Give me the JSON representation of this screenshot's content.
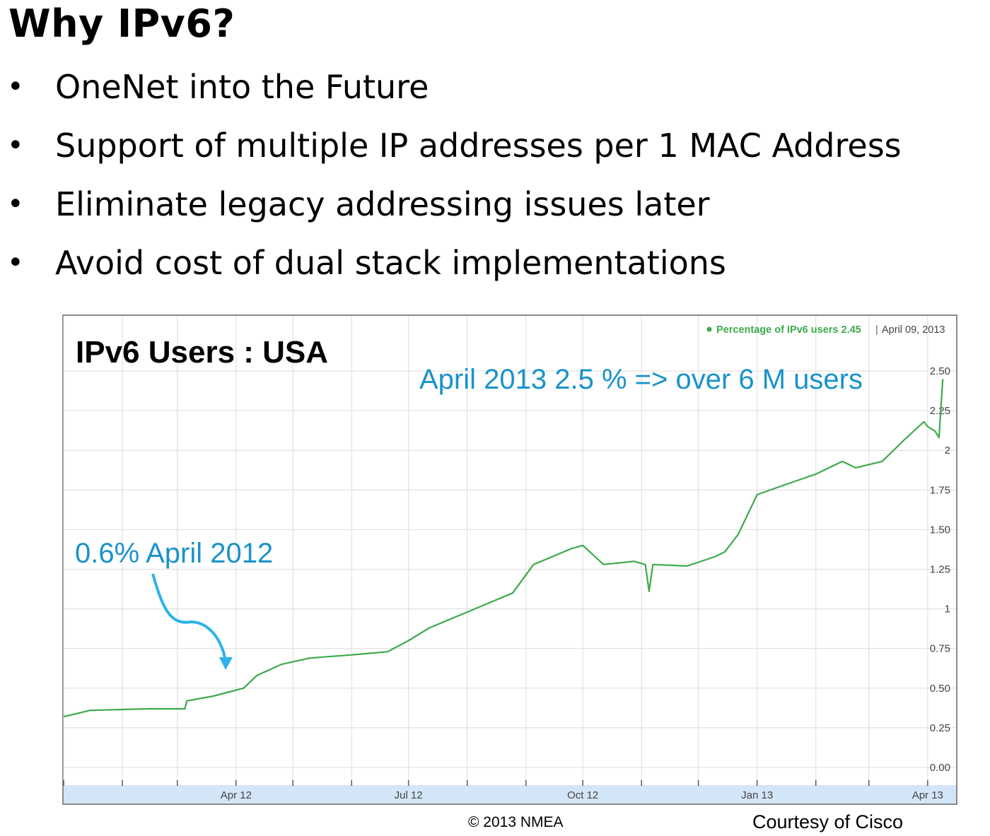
{
  "slide": {
    "title": "Why IPv6?",
    "bullet_symbol": "•",
    "bullets": [
      "OneNet into the Future",
      "Support of multiple IP addresses per 1 MAC Address",
      "Eliminate legacy addressing issues later",
      "Avoid cost of dual stack implementations"
    ],
    "footer_left": "© 2013 NMEA",
    "footer_right": "Courtesy of Cisco"
  },
  "colors": {
    "line": "#3daa4c",
    "annotation": "#1a93c9",
    "arrow": "#2bb3e8",
    "axis_band": "#d3e6f7",
    "grid": "#dcdcdc"
  },
  "chart_data": {
    "type": "line",
    "title": "IPv6 Users : USA",
    "legend_label": "Percentage of IPv6 users 2.45",
    "legend_date": "April 09, 2013",
    "legend_position": "top-right",
    "xlabel": "",
    "ylabel": "",
    "ylim": [
      0,
      2.5
    ],
    "xlim": [
      "2012-01-01",
      "2013-04-16"
    ],
    "y_ticks": [
      "0.00",
      "0.25",
      "0.50",
      "0.75",
      "1",
      "1.25",
      "1.50",
      "1.75",
      "2",
      "2.25",
      "2.50"
    ],
    "x_ticks": [
      {
        "date": "2012-04-01",
        "label": "Apr 12"
      },
      {
        "date": "2012-07-01",
        "label": "Jul 12"
      },
      {
        "date": "2012-10-01",
        "label": "Oct 12"
      },
      {
        "date": "2013-01-01",
        "label": "Jan 13"
      },
      {
        "date": "2013-04-01",
        "label": "Apr 13"
      }
    ],
    "grid": true,
    "series": [
      {
        "points": [
          [
            "2012-01-01",
            0.32
          ],
          [
            "2012-01-15",
            0.36
          ],
          [
            "2012-02-15",
            0.37
          ],
          [
            "2012-03-05",
            0.37
          ],
          [
            "2012-03-06",
            0.42
          ],
          [
            "2012-03-20",
            0.45
          ],
          [
            "2012-04-05",
            0.5
          ],
          [
            "2012-04-12",
            0.58
          ],
          [
            "2012-04-25",
            0.65
          ],
          [
            "2012-05-10",
            0.69
          ],
          [
            "2012-06-01",
            0.71
          ],
          [
            "2012-06-20",
            0.73
          ],
          [
            "2012-07-01",
            0.8
          ],
          [
            "2012-07-12",
            0.88
          ],
          [
            "2012-07-28",
            0.96
          ],
          [
            "2012-08-15",
            1.05
          ],
          [
            "2012-08-25",
            1.1
          ],
          [
            "2012-09-05",
            1.28
          ],
          [
            "2012-09-25",
            1.38
          ],
          [
            "2012-10-01",
            1.4
          ],
          [
            "2012-10-12",
            1.28
          ],
          [
            "2012-10-28",
            1.3
          ],
          [
            "2012-11-03",
            1.28
          ],
          [
            "2012-11-05",
            1.11
          ],
          [
            "2012-11-07",
            1.28
          ],
          [
            "2012-11-25",
            1.27
          ],
          [
            "2012-12-10",
            1.33
          ],
          [
            "2012-12-15",
            1.36
          ],
          [
            "2012-12-22",
            1.47
          ],
          [
            "2013-01-01",
            1.72
          ],
          [
            "2013-01-15",
            1.78
          ],
          [
            "2013-02-01",
            1.85
          ],
          [
            "2013-02-15",
            1.93
          ],
          [
            "2013-02-22",
            1.89
          ],
          [
            "2013-03-08",
            1.93
          ],
          [
            "2013-03-20",
            2.07
          ],
          [
            "2013-03-30",
            2.18
          ],
          [
            "2013-04-01",
            2.15
          ],
          [
            "2013-04-05",
            2.12
          ],
          [
            "2013-04-07",
            2.08
          ],
          [
            "2013-04-09",
            2.45
          ]
        ]
      }
    ],
    "annotations": [
      {
        "text": "April 2013  2.5 % => over 6 M users"
      },
      {
        "text": "0.6% April 2012"
      }
    ]
  }
}
